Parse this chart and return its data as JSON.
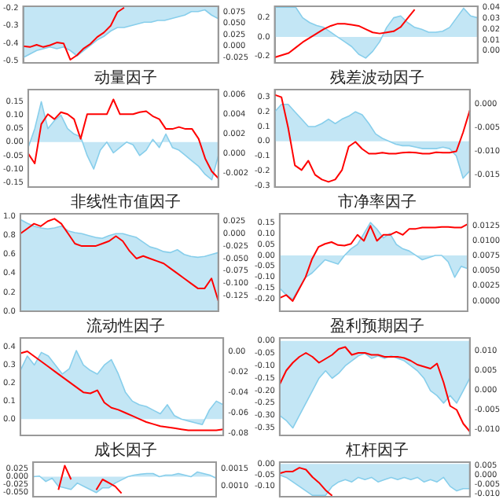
{
  "chart_data": [
    {
      "type": "line",
      "categories": [
        null,
        null,
        null,
        null,
        null,
        null,
        null,
        null,
        null,
        null,
        null,
        null,
        null,
        null,
        null,
        null,
        null,
        null,
        null,
        null,
        null,
        null,
        null,
        null,
        null,
        null,
        null,
        null,
        null,
        null
      ],
      "tick_labels": "y",
      "ylim": [
        -0.51,
        -0.19
      ],
      "yticks": [
        -0.5,
        -0.4,
        -0.3,
        -0.2
      ],
      "y2lim": [
        -0.037,
        0.088
      ],
      "y2ticks": [
        -0.025,
        {
          "value": 0,
          "label": "0.000"
        },
        0.025,
        {
          "value": 0.05,
          "label": "0.050"
        },
        0.075
      ],
      "series": [
        {
          "type": "area",
          "color": "#87ceeb",
          "values": [
            -0.48,
            -0.46,
            -0.44,
            -0.43,
            -0.42,
            -0.43,
            -0.42,
            -0.44,
            -0.47,
            -0.44,
            -0.41,
            -0.38,
            -0.36,
            -0.33,
            -0.31,
            -0.31,
            -0.3,
            -0.29,
            -0.28,
            -0.28,
            -0.27,
            -0.27,
            -0.26,
            -0.25,
            -0.24,
            -0.22,
            -0.22,
            -0.21,
            -0.24,
            -0.26
          ]
        },
        {
          "type": "line",
          "color": "#ff0000",
          "axis": "y2",
          "values": [
            0.0,
            -0.002,
            0.003,
            -0.002,
            0.002,
            0.008,
            0.006,
            -0.03,
            -0.02,
            -0.005,
            0.005,
            0.02,
            0.03,
            0.045,
            0.075,
            0.085,
            null,
            null,
            null,
            null,
            null,
            null,
            null,
            null,
            null,
            null,
            null,
            null,
            null,
            null
          ]
        }
      ]
    },
    {
      "type": "line",
      "categories": [
        null,
        null,
        null,
        null,
        null,
        null,
        null,
        null,
        null,
        null,
        null,
        null,
        null,
        null,
        null,
        null,
        null,
        null,
        null,
        null,
        null,
        null,
        null,
        null,
        null,
        null,
        null,
        null,
        null,
        null
      ],
      "tick_labels": "y",
      "ylim": [
        -0.27,
        0.32
      ],
      "yticks": [
        -0.2,
        {
          "value": 0,
          "label": "0.0"
        },
        0.2
      ],
      "y2lim": [
        -0.011,
        0.041
      ],
      "y2ticks": [
        {
          "value": 0,
          "label": "0.00"
        },
        0.01,
        0.02,
        0.03,
        0.04
      ],
      "series": [
        {
          "type": "area",
          "color": "#87ceeb",
          "values": [
            0.31,
            0.31,
            0.31,
            0.31,
            0.2,
            0.15,
            0.12,
            0.1,
            0.05,
            0.0,
            -0.05,
            -0.1,
            -0.18,
            -0.22,
            -0.15,
            -0.05,
            0.1,
            0.2,
            0.22,
            0.15,
            0.1,
            0.08,
            0.05,
            0.05,
            0.06,
            0.1,
            0.2,
            0.3,
            0.22,
            0.2
          ]
        },
        {
          "type": "line",
          "color": "#ff0000",
          "axis": "y2",
          "values": [
            -0.006,
            -0.004,
            -0.002,
            0.003,
            0.008,
            0.012,
            0.016,
            0.02,
            0.023,
            0.025,
            0.025,
            0.024,
            0.023,
            0.02,
            0.017,
            0.016,
            0.017,
            0.018,
            0.022,
            0.03,
            0.038,
            null,
            null,
            null,
            null,
            null,
            null,
            null,
            null,
            null
          ]
        }
      ]
    },
    {
      "type": "line",
      "title": "动量因子",
      "categories": [
        null,
        null,
        null,
        null,
        null,
        null,
        null,
        null,
        null,
        null,
        null,
        null,
        null,
        null,
        null,
        null,
        null,
        null,
        null,
        null,
        null,
        null,
        null,
        null,
        null,
        null,
        null,
        null,
        null,
        null
      ],
      "tick_labels": "y",
      "ylim": [
        -0.167,
        0.195
      ],
      "yticks": [
        -0.15,
        {
          "value": -0.1,
          "label": "-0.10"
        },
        -0.05,
        {
          "value": 0,
          "label": "0.00"
        },
        0.05,
        {
          "value": 0.1,
          "label": "0.10"
        },
        0.15
      ],
      "y2lim": [
        -0.0034,
        0.0065
      ],
      "y2ticks": [
        -0.002,
        {
          "value": 0,
          "label": "0.000"
        },
        0.002,
        0.004,
        0.006
      ],
      "series": [
        {
          "type": "area",
          "color": "#87ceeb",
          "values": [
            -0.02,
            0.05,
            0.15,
            0.05,
            0.08,
            0.1,
            0.05,
            0.03,
            0.02,
            -0.05,
            -0.1,
            -0.03,
            0.0,
            -0.04,
            -0.02,
            0.0,
            -0.01,
            -0.05,
            -0.03,
            0.01,
            -0.02,
            0.03,
            -0.02,
            -0.03,
            -0.05,
            -0.07,
            -0.09,
            -0.12,
            -0.14,
            -0.05
          ]
        },
        {
          "type": "line",
          "color": "#ff0000",
          "axis": "y2",
          "values": [
            0.0,
            -0.001,
            0.003,
            0.004,
            0.0035,
            0.0042,
            0.004,
            0.0035,
            0.0015,
            0.004,
            0.004,
            0.004,
            0.004,
            0.0055,
            0.004,
            0.004,
            0.004,
            0.0042,
            0.0043,
            0.0038,
            0.0035,
            0.0025,
            0.0025,
            0.0027,
            0.0025,
            0.0025,
            0.0015,
            -0.0005,
            -0.0018,
            -0.0025
          ]
        }
      ]
    },
    {
      "type": "line",
      "title": "残差波动因子",
      "categories": [
        null,
        null,
        null,
        null,
        null,
        null,
        null,
        null,
        null,
        null,
        null,
        null,
        null,
        null,
        null,
        null,
        null,
        null,
        null,
        null,
        null,
        null,
        null,
        null,
        null,
        null,
        null,
        null,
        null,
        null
      ],
      "tick_labels": "y",
      "ylim": [
        -0.31,
        0.35
      ],
      "yticks": [
        -0.3,
        -0.2,
        -0.1,
        {
          "value": 0,
          "label": "0.0"
        },
        0.1,
        0.2,
        0.3
      ],
      "y2lim": [
        -0.0176,
        0.0031
      ],
      "y2ticks": [
        -0.015,
        {
          "value": -0.01,
          "label": "-0.010"
        },
        -0.005,
        {
          "value": 0,
          "label": "0.000"
        }
      ],
      "series": [
        {
          "type": "area",
          "color": "#87ceeb",
          "values": [
            0.2,
            0.25,
            0.25,
            0.2,
            0.15,
            0.1,
            0.1,
            0.12,
            0.15,
            0.12,
            0.15,
            0.17,
            0.2,
            0.18,
            0.12,
            0.05,
            0.02,
            0.0,
            -0.02,
            -0.03,
            -0.03,
            -0.04,
            -0.05,
            -0.05,
            -0.05,
            -0.04,
            -0.05,
            -0.1,
            -0.25,
            -0.2
          ]
        },
        {
          "type": "line",
          "color": "#ff0000",
          "axis": "y2",
          "values": [
            0.002,
            0.0015,
            -0.005,
            -0.013,
            -0.014,
            -0.012,
            -0.015,
            -0.016,
            -0.0165,
            -0.016,
            -0.014,
            -0.009,
            -0.008,
            -0.0095,
            -0.0105,
            -0.0105,
            -0.0103,
            -0.0105,
            -0.0105,
            -0.0103,
            -0.0102,
            -0.0103,
            -0.0105,
            -0.0105,
            -0.0102,
            -0.0103,
            -0.0103,
            -0.01,
            -0.006,
            -0.0013
          ]
        }
      ]
    },
    {
      "type": "line",
      "title": "非线性市值因子",
      "categories": [
        null,
        null,
        null,
        null,
        null,
        null,
        null,
        null,
        null,
        null,
        null,
        null,
        null,
        null,
        null,
        null,
        null,
        null,
        null,
        null,
        null,
        null,
        null,
        null,
        null,
        null,
        null,
        null,
        null,
        null
      ],
      "tick_labels": "y",
      "ylim": [
        0,
        1.03
      ],
      "yticks": [
        {
          "value": 0,
          "label": "0.0"
        },
        0.2,
        0.4,
        0.6,
        0.8,
        {
          "value": 1,
          "label": "1.0"
        }
      ],
      "y2lim": [
        -0.156,
        0.04
      ],
      "y2ticks": [
        -0.125,
        {
          "value": -0.1,
          "label": "-0.100"
        },
        -0.075,
        {
          "value": -0.05,
          "label": "-0.050"
        },
        -0.025,
        {
          "value": 0,
          "label": "0.000"
        },
        0.025
      ],
      "series": [
        {
          "type": "area",
          "color": "#87ceeb",
          "values": [
            0.97,
            0.93,
            0.9,
            0.88,
            0.87,
            0.88,
            0.9,
            0.85,
            0.83,
            0.82,
            0.8,
            0.78,
            0.77,
            0.8,
            0.82,
            0.82,
            0.8,
            0.78,
            0.73,
            0.68,
            0.66,
            0.63,
            0.62,
            0.65,
            0.6,
            0.58,
            0.57,
            0.58,
            0.6,
            0.62
          ]
        },
        {
          "type": "line",
          "color": "#ff0000",
          "axis": "y2",
          "values": [
            0.0,
            0.01,
            0.02,
            0.015,
            0.025,
            0.03,
            0.02,
            0.0,
            -0.02,
            -0.025,
            -0.025,
            -0.025,
            -0.02,
            -0.015,
            -0.005,
            -0.015,
            -0.035,
            -0.05,
            -0.045,
            -0.05,
            -0.055,
            -0.06,
            -0.07,
            -0.08,
            -0.09,
            -0.1,
            -0.11,
            -0.11,
            -0.09,
            -0.135
          ]
        }
      ]
    },
    {
      "type": "line",
      "title": "市净率因子",
      "categories": [
        null,
        null,
        null,
        null,
        null,
        null,
        null,
        null,
        null,
        null,
        null,
        null,
        null,
        null,
        null,
        null,
        null,
        null,
        null,
        null,
        null,
        null,
        null,
        null,
        null,
        null,
        null,
        null,
        null,
        null
      ],
      "tick_labels": "y",
      "ylim": [
        -0.255,
        0.19
      ],
      "yticks": [
        {
          "value": -0.2,
          "label": "-0.20"
        },
        -0.15,
        {
          "value": -0.1,
          "label": "-0.10"
        },
        -0.05,
        {
          "value": 0,
          "label": "0.00"
        },
        0.05,
        {
          "value": 0.1,
          "label": "0.10"
        },
        0.15
      ],
      "y2lim": [
        -0.0017,
        0.0145
      ],
      "y2ticks": [
        {
          "value": 0,
          "label": "0.0000"
        },
        0.0025,
        {
          "value": 0.005,
          "label": "0.0050"
        },
        0.0075,
        {
          "value": 0.01,
          "label": "0.0100"
        },
        0.0125
      ],
      "series": [
        {
          "type": "area",
          "color": "#87ceeb",
          "values": [
            -0.15,
            -0.18,
            -0.2,
            -0.15,
            -0.1,
            -0.08,
            -0.05,
            -0.02,
            -0.03,
            -0.04,
            0.0,
            0.03,
            0.05,
            0.1,
            0.15,
            0.12,
            0.08,
            0.1,
            0.05,
            0.03,
            0.02,
            0.0,
            -0.02,
            -0.01,
            0.0,
            0.0,
            -0.03,
            -0.1,
            -0.05,
            -0.06
          ]
        },
        {
          "type": "line",
          "color": "#ff0000",
          "axis": "y2",
          "values": [
            0.0005,
            0.001,
            0.0,
            0.002,
            0.004,
            0.007,
            0.009,
            0.0095,
            0.0098,
            0.0093,
            0.0092,
            0.0095,
            0.011,
            0.01,
            0.0125,
            0.01,
            0.011,
            0.011,
            0.0115,
            0.011,
            0.012,
            0.012,
            0.0122,
            0.0122,
            0.0122,
            0.0123,
            0.0123,
            0.0122,
            0.0122,
            0.0128
          ]
        }
      ]
    },
    {
      "type": "line",
      "title": "流动性因子",
      "categories": [
        null,
        null,
        null,
        null,
        null,
        null,
        null,
        null,
        null,
        null,
        null,
        null,
        null,
        null,
        null,
        null,
        null,
        null,
        null,
        null,
        null,
        null,
        null,
        null,
        null,
        null,
        null,
        null,
        null,
        null
      ],
      "tick_labels": "y",
      "ylim": [
        -0.09,
        0.45
      ],
      "yticks": [
        {
          "value": 0,
          "label": "0.0"
        },
        0.1,
        0.2,
        0.3,
        0.4
      ],
      "y2lim": [
        -0.082,
        0.013
      ],
      "y2ticks": [
        -0.08,
        -0.06,
        -0.04,
        -0.02,
        {
          "value": 0,
          "label": "0.00"
        }
      ],
      "series": [
        {
          "type": "area",
          "color": "#87ceeb",
          "values": [
            0.27,
            0.35,
            0.3,
            0.37,
            0.35,
            0.3,
            0.25,
            0.28,
            0.38,
            0.3,
            0.27,
            0.25,
            0.3,
            0.33,
            0.25,
            0.15,
            0.1,
            0.08,
            0.07,
            0.05,
            0.03,
            0.08,
            0.02,
            0.0,
            -0.01,
            -0.02,
            -0.03,
            0.05,
            0.1,
            0.08
          ]
        },
        {
          "type": "line",
          "color": "#ff0000",
          "axis": "y2",
          "values": [
            -0.002,
            0.0,
            -0.005,
            -0.01,
            -0.015,
            -0.02,
            -0.025,
            -0.03,
            -0.035,
            -0.04,
            -0.041,
            -0.038,
            -0.05,
            -0.055,
            -0.057,
            -0.06,
            -0.063,
            -0.066,
            -0.069,
            -0.071,
            -0.073,
            -0.074,
            -0.075,
            -0.076,
            -0.077,
            -0.077,
            -0.077,
            -0.077,
            -0.077,
            -0.076
          ]
        }
      ]
    },
    {
      "type": "line",
      "title": "盈利预期因子",
      "categories": [
        null,
        null,
        null,
        null,
        null,
        null,
        null,
        null,
        null,
        null,
        null,
        null,
        null,
        null,
        null,
        null,
        null,
        null,
        null,
        null,
        null,
        null,
        null,
        null,
        null,
        null,
        null,
        null,
        null,
        null
      ],
      "tick_labels": "y",
      "ylim": [
        -0.38,
        0.012
      ],
      "yticks": [
        -0.35,
        {
          "value": -0.3,
          "label": "-0.30"
        },
        -0.25,
        {
          "value": -0.2,
          "label": "-0.20"
        },
        -0.15,
        {
          "value": -0.1,
          "label": "-0.10"
        },
        -0.05,
        {
          "value": 0,
          "label": "0.00"
        }
      ],
      "y2lim": [
        -0.0115,
        0.0133
      ],
      "y2ticks": [
        {
          "value": -0.01,
          "label": "-0.010"
        },
        -0.005,
        {
          "value": 0,
          "label": "0.000"
        },
        0.005,
        {
          "value": 0.01,
          "label": "0.010"
        }
      ],
      "series": [
        {
          "type": "area",
          "color": "#87ceeb",
          "values": [
            -0.3,
            -0.32,
            -0.35,
            -0.3,
            -0.25,
            -0.2,
            -0.15,
            -0.12,
            -0.15,
            -0.13,
            -0.1,
            -0.08,
            -0.06,
            -0.05,
            -0.07,
            -0.06,
            -0.07,
            -0.06,
            -0.07,
            -0.08,
            -0.1,
            -0.12,
            -0.15,
            -0.2,
            -0.22,
            -0.25,
            -0.22,
            -0.25,
            -0.2,
            -0.15
          ]
        },
        {
          "type": "line",
          "color": "#ff0000",
          "axis": "y2",
          "values": [
            0.0015,
            0.005,
            0.007,
            0.0085,
            0.0095,
            0.0085,
            0.007,
            0.008,
            0.009,
            0.0105,
            0.011,
            0.009,
            0.0095,
            0.0095,
            0.009,
            0.009,
            0.0085,
            0.0085,
            0.0085,
            0.0082,
            0.0075,
            0.0065,
            0.006,
            0.0055,
            0.0068,
            0.002,
            -0.004,
            -0.005,
            -0.0085,
            -0.0105
          ]
        }
      ]
    },
    {
      "type": "line",
      "title": "成长因子",
      "categories": [
        null,
        null,
        null,
        null,
        null,
        null,
        null,
        null,
        null,
        null,
        null,
        null,
        null,
        null,
        null,
        null,
        null,
        null,
        null,
        null,
        null,
        null,
        null,
        null,
        null,
        null,
        null,
        null,
        null,
        null
      ],
      "tick_labels": "y",
      "ylim": [
        -0.063,
        0.046
      ],
      "yticks": [
        {
          "value": -0.05,
          "label": "-0.050"
        },
        -0.025,
        {
          "value": 0,
          "label": "0.000"
        },
        0.025
      ],
      "y2lim": [
        0.0007,
        0.0017
      ],
      "y2ticks": [
        {
          "value": 0.001,
          "label": "0.0010"
        },
        0.0015
      ],
      "series": [
        {
          "type": "area",
          "color": "#87ceeb",
          "values": [
            0.0,
            0.002,
            -0.015,
            -0.005,
            -0.03,
            -0.035,
            -0.04,
            -0.02,
            -0.03,
            -0.04,
            -0.05,
            -0.035,
            -0.035,
            -0.02,
            -0.01,
            0.0,
            0.005,
            0.008,
            0.01,
            0.01,
            0.0,
            0.005,
            0.005,
            0.01,
            0.005,
            0.0,
            0.015,
            0.01,
            0.005,
            -0.005
          ]
        },
        {
          "type": "line",
          "color": "#ff0000",
          "axis": "y2",
          "values": [
            null,
            null,
            null,
            null,
            0.0009,
            0.0016,
            0.0012,
            null,
            null,
            null,
            0.0009,
            0.0012,
            0.0011,
            0.001,
            0.0008,
            null,
            null,
            null,
            null,
            null,
            null,
            null,
            null,
            null,
            null,
            null,
            null,
            null,
            null,
            null
          ]
        }
      ]
    },
    {
      "type": "line",
      "title": "杠杆因子",
      "categories": [
        null,
        null,
        null,
        null,
        null,
        null,
        null,
        null,
        null,
        null,
        null,
        null,
        null,
        null,
        null,
        null,
        null,
        null,
        null,
        null,
        null,
        null,
        null,
        null,
        null,
        null,
        null,
        null,
        null,
        null
      ],
      "tick_labels": "y",
      "ylim": [
        -0.146,
        0.008
      ],
      "yticks": [
        {
          "value": -0.1,
          "label": "-0.10"
        },
        -0.05,
        {
          "value": 0,
          "label": "0.00"
        }
      ],
      "y2lim": [
        -0.0115,
        0.007
      ],
      "y2ticks": [
        {
          "value": -0.01,
          "label": "-0.010"
        },
        -0.005,
        {
          "value": 0,
          "label": "0.000"
        },
        0.005
      ],
      "series": [
        {
          "type": "area",
          "color": "#87ceeb",
          "values": [
            -0.05,
            -0.06,
            -0.08,
            -0.1,
            -0.12,
            -0.14,
            -0.14,
            -0.14,
            -0.1,
            -0.08,
            -0.07,
            -0.08,
            -0.06,
            -0.07,
            -0.06,
            -0.08,
            -0.07,
            -0.06,
            -0.07,
            -0.06,
            -0.07,
            -0.06,
            -0.08,
            -0.07,
            -0.08,
            -0.06,
            -0.1,
            -0.12,
            -0.11,
            -0.11
          ]
        },
        {
          "type": "line",
          "color": "#ff0000",
          "axis": "y2",
          "values": [
            0.001,
            0.002,
            0.002,
            0.004,
            0.003,
            -0.001,
            -0.004,
            -0.008,
            -0.011,
            null,
            null,
            null,
            null,
            null,
            null,
            null,
            null,
            null,
            null,
            null,
            null,
            null,
            null,
            null,
            null,
            null,
            null,
            null,
            null,
            null
          ]
        }
      ]
    }
  ]
}
